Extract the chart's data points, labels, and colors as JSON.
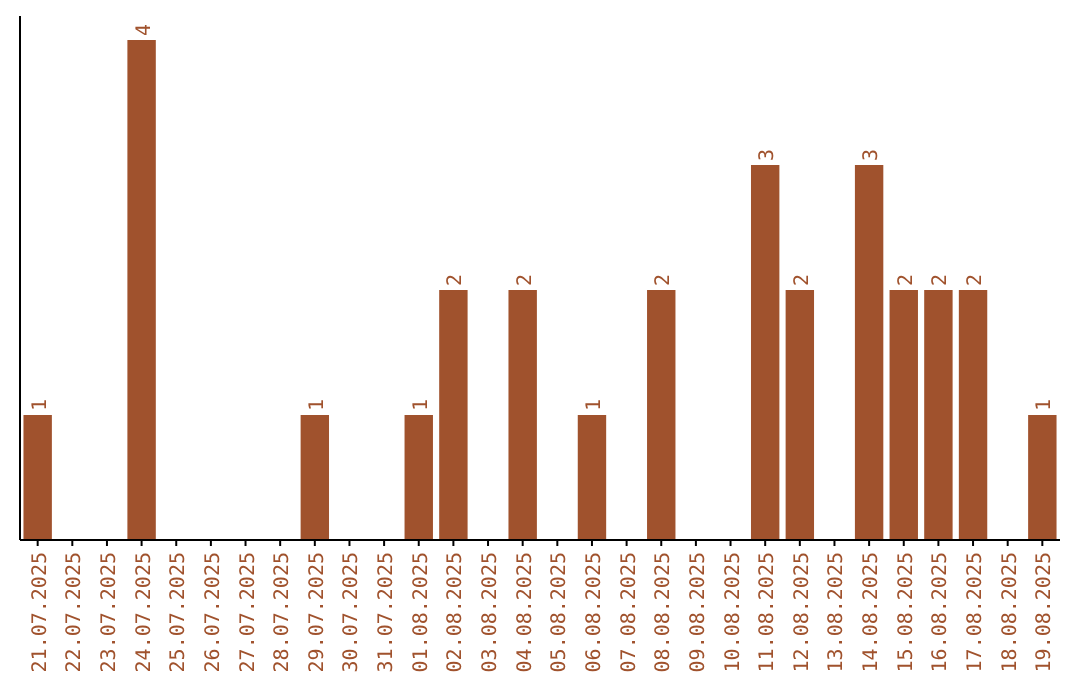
{
  "chart_data": {
    "type": "bar",
    "categories": [
      "21.07.2025",
      "22.07.2025",
      "23.07.2025",
      "24.07.2025",
      "25.07.2025",
      "26.07.2025",
      "27.07.2025",
      "28.07.2025",
      "29.07.2025",
      "30.07.2025",
      "31.07.2025",
      "01.08.2025",
      "02.08.2025",
      "03.08.2025",
      "04.08.2025",
      "05.08.2025",
      "06.08.2025",
      "07.08.2025",
      "08.08.2025",
      "09.08.2025",
      "10.08.2025",
      "11.08.2025",
      "12.08.2025",
      "13.08.2025",
      "14.08.2025",
      "15.08.2025",
      "16.08.2025",
      "17.08.2025",
      "18.08.2025",
      "19.08.2025"
    ],
    "values": [
      1,
      0,
      0,
      4,
      0,
      0,
      0,
      0,
      1,
      0,
      0,
      1,
      2,
      0,
      2,
      0,
      1,
      0,
      2,
      0,
      0,
      3,
      2,
      0,
      3,
      2,
      2,
      2,
      0,
      1
    ],
    "value_labels": [
      "1",
      null,
      null,
      "4",
      null,
      null,
      null,
      null,
      "1",
      null,
      null,
      "1",
      "2",
      null,
      "2",
      null,
      "1",
      null,
      "2",
      null,
      null,
      "3",
      "2",
      null,
      "3",
      "2",
      "2",
      "2",
      null,
      "1"
    ],
    "color": "#a0522d"
  }
}
